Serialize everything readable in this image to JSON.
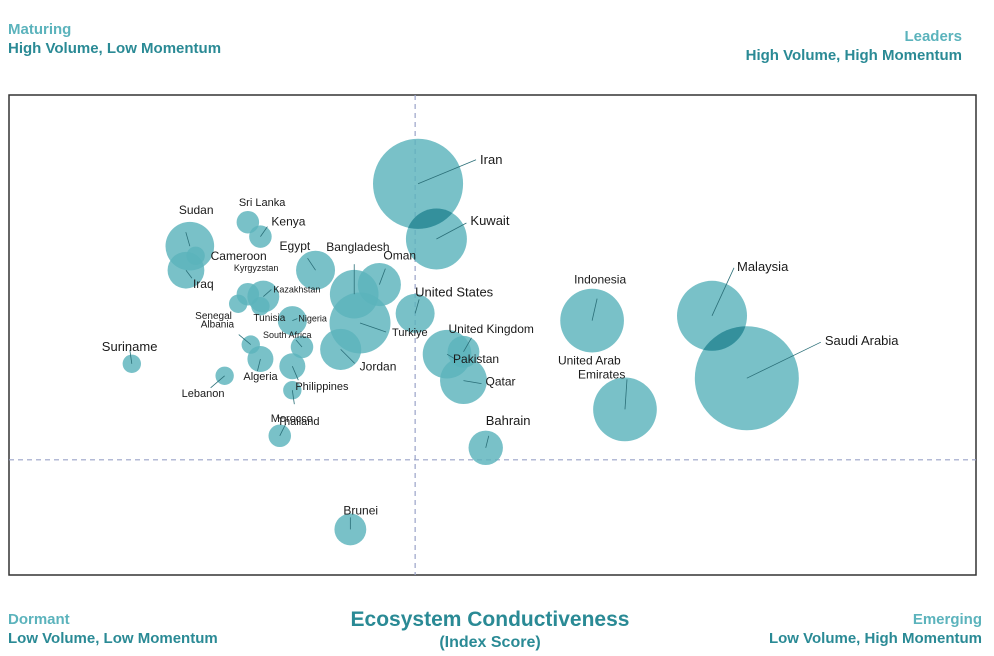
{
  "quadrants": {
    "top_left": {
      "name": "Maturing",
      "desc": "High Volume, Low Momentum"
    },
    "top_right": {
      "name": "Leaders",
      "desc": "High Volume, High Momentum"
    },
    "bottom_left": {
      "name": "Dormant",
      "desc": "Low Volume, Low Momentum"
    },
    "bottom_right": {
      "name": "Emerging",
      "desc": "Low Volume, High Momentum"
    }
  },
  "axis_title": {
    "line1": "Ecosystem Conductiveness",
    "line2": "(Index Score)"
  },
  "colors": {
    "bubble": "#5bb3bc",
    "frame": "#333333",
    "divider": "#9aa3c8",
    "overlap": "#2d8a96"
  },
  "chart_data": {
    "type": "scatter",
    "title": "Ecosystem Conductiveness (Index Score)",
    "xlabel": "Ecosystem Conductiveness (Index Score)",
    "ylabel": "",
    "xlim": [
      0,
      100
    ],
    "ylim": [
      0,
      100
    ],
    "x_divider": 42,
    "y_divider": 24,
    "grid": false,
    "size_unit": "relative bubble size",
    "points": [
      {
        "name": "Iran",
        "x": 42.3,
        "y": 81.5,
        "size": 48
      },
      {
        "name": "Kuwait",
        "x": 44.2,
        "y": 70.0,
        "size": 22
      },
      {
        "name": "Malaysia",
        "x": 72.7,
        "y": 54.0,
        "size": 29
      },
      {
        "name": "Saudi Arabia",
        "x": 76.3,
        "y": 41.0,
        "size": 64
      },
      {
        "name": "Indonesia",
        "x": 60.3,
        "y": 53.0,
        "size": 24
      },
      {
        "name": "United Arab Emirates",
        "x": 63.7,
        "y": 34.5,
        "size": 24
      },
      {
        "name": "United States",
        "x": 42.0,
        "y": 54.5,
        "size": 9
      },
      {
        "name": "United Kingdom",
        "x": 47.0,
        "y": 46.5,
        "size": 6
      },
      {
        "name": "Pakistan",
        "x": 45.3,
        "y": 46.0,
        "size": 14
      },
      {
        "name": "Qatar",
        "x": 47.0,
        "y": 40.5,
        "size": 13
      },
      {
        "name": "Bahrain",
        "x": 49.3,
        "y": 26.5,
        "size": 7
      },
      {
        "name": "Bangladesh",
        "x": 35.7,
        "y": 58.5,
        "size": 14
      },
      {
        "name": "Oman",
        "x": 38.3,
        "y": 60.5,
        "size": 11
      },
      {
        "name": "Turkiye",
        "x": 36.3,
        "y": 52.5,
        "size": 22
      },
      {
        "name": "Jordan",
        "x": 34.3,
        "y": 47.0,
        "size": 10
      },
      {
        "name": "Egypt",
        "x": 31.7,
        "y": 63.5,
        "size": 9
      },
      {
        "name": "Sudan",
        "x": 18.7,
        "y": 68.5,
        "size": 14
      },
      {
        "name": "Iraq",
        "x": 18.3,
        "y": 63.5,
        "size": 8
      },
      {
        "name": "Sri Lanka",
        "x": 24.7,
        "y": 73.5,
        "size": 3
      },
      {
        "name": "Kenya",
        "x": 26.0,
        "y": 70.5,
        "size": 3
      },
      {
        "name": "Cameroon",
        "x": 19.3,
        "y": 66.5,
        "size": 2
      },
      {
        "name": "Kyrgyzstan",
        "x": 24.7,
        "y": 58.5,
        "size": 3
      },
      {
        "name": "Kazakhstan",
        "x": 26.3,
        "y": 58.0,
        "size": 6
      },
      {
        "name": "Senegal",
        "x": 23.7,
        "y": 56.5,
        "size": 2
      },
      {
        "name": "Tunisia",
        "x": 26.0,
        "y": 56.0,
        "size": 2
      },
      {
        "name": "Nigeria",
        "x": 29.3,
        "y": 53.0,
        "size": 5
      },
      {
        "name": "Albania",
        "x": 25.0,
        "y": 48.0,
        "size": 2
      },
      {
        "name": "South Africa",
        "x": 30.3,
        "y": 47.5,
        "size": 3
      },
      {
        "name": "Algeria",
        "x": 26.0,
        "y": 45.0,
        "size": 4
      },
      {
        "name": "Philippines",
        "x": 29.3,
        "y": 43.5,
        "size": 4
      },
      {
        "name": "Thailand",
        "x": 29.3,
        "y": 38.5,
        "size": 2
      },
      {
        "name": "Lebanon",
        "x": 22.3,
        "y": 41.5,
        "size": 2
      },
      {
        "name": "Suriname",
        "x": 12.7,
        "y": 44.0,
        "size": 2
      },
      {
        "name": "Morocco",
        "x": 28.0,
        "y": 29.0,
        "size": 3
      },
      {
        "name": "Brunei",
        "x": 35.3,
        "y": 9.5,
        "size": 6
      }
    ]
  }
}
